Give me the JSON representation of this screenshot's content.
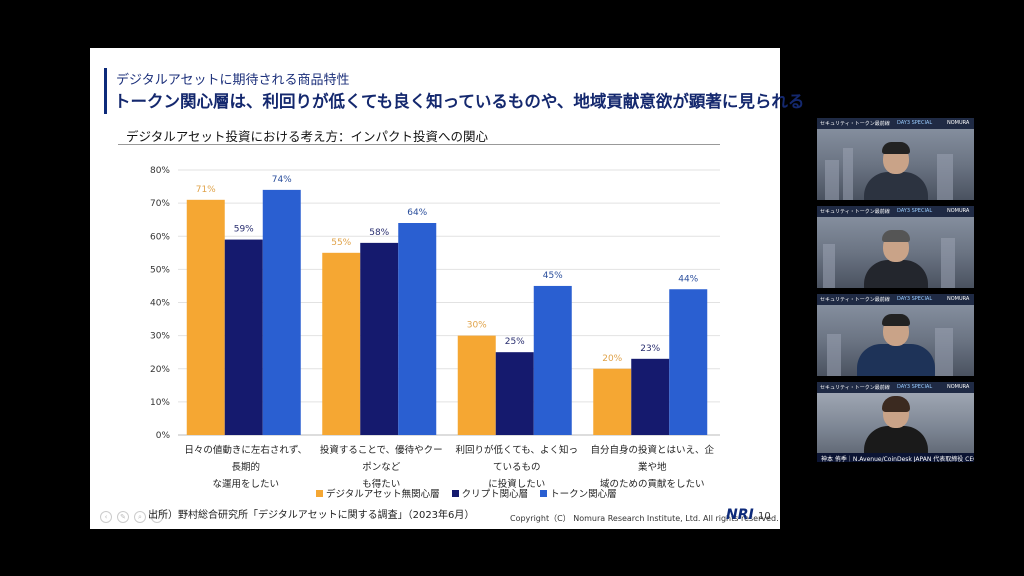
{
  "slide": {
    "subtitle": "デジタルアセットに期待される商品特性",
    "title": "トークン関心層は、利回りが低くても良く知っているものや、地域貢献意欲が顕著に見られる",
    "chart_heading": "デジタルアセット投資における考え方：インパクト投資への関心",
    "source": "出所）野村総合研究所「デジタルアセットに関する調査」（2023年6月）",
    "copyright": "Copyright（C） Nomura Research Institute, Ltd. All rights reserved.",
    "logo": "NRI",
    "page_number": "10"
  },
  "chart_data": {
    "type": "bar",
    "categories": [
      [
        "日々の値動きに左右されず、長期的",
        "な運用をしたい"
      ],
      [
        "投資することで、優待やクーポンなど",
        "も得たい"
      ],
      [
        "利回りが低くても、よく知っているもの",
        "に投資したい"
      ],
      [
        "自分自身の投資とはいえ、企業や地",
        "域のための貢献をしたい"
      ]
    ],
    "series": [
      {
        "name": "デジタルアセット無関心層",
        "color": "#f5a733",
        "label_color": "#e0a34a",
        "values": [
          71,
          55,
          30,
          20
        ]
      },
      {
        "name": "クリプト関心層",
        "color": "#151a6e",
        "label_color": "#2a2f70",
        "values": [
          59,
          58,
          25,
          23
        ]
      },
      {
        "name": "トークン関心層",
        "color": "#2a5fd1",
        "label_color": "#2a4e9c",
        "values": [
          74,
          64,
          45,
          44
        ]
      }
    ],
    "y_ticks": [
      "0%",
      "10%",
      "20%",
      "30%",
      "40%",
      "50%",
      "60%",
      "70%",
      "80%"
    ],
    "ylim": [
      0,
      80
    ],
    "grid": true,
    "legend_position": "bottom"
  },
  "participants": [
    {
      "header_left": "セキュリティ・トークン最前線",
      "header_badge": "DAY3 SPECIAL",
      "header_right": "NOMURA",
      "suit": "#2c3340"
    },
    {
      "header_left": "セキュリティ・トークン最前線",
      "header_badge": "DAY3 SPECIAL",
      "header_right": "NOMURA",
      "suit": "#23262d"
    },
    {
      "header_left": "セキュリティ・トークン最前線",
      "header_badge": "DAY3 SPECIAL",
      "header_right": "NOMURA",
      "suit": "#1e3358"
    },
    {
      "header_left": "セキュリティ・トークン最前線",
      "header_badge": "DAY3 SPECIAL",
      "header_right": "NOMURA",
      "suit": "#1a1a1a",
      "caption": "神本 侑季｜N.Avenue/CoinDesk JAPAN 代表取締役 CEO"
    }
  ]
}
